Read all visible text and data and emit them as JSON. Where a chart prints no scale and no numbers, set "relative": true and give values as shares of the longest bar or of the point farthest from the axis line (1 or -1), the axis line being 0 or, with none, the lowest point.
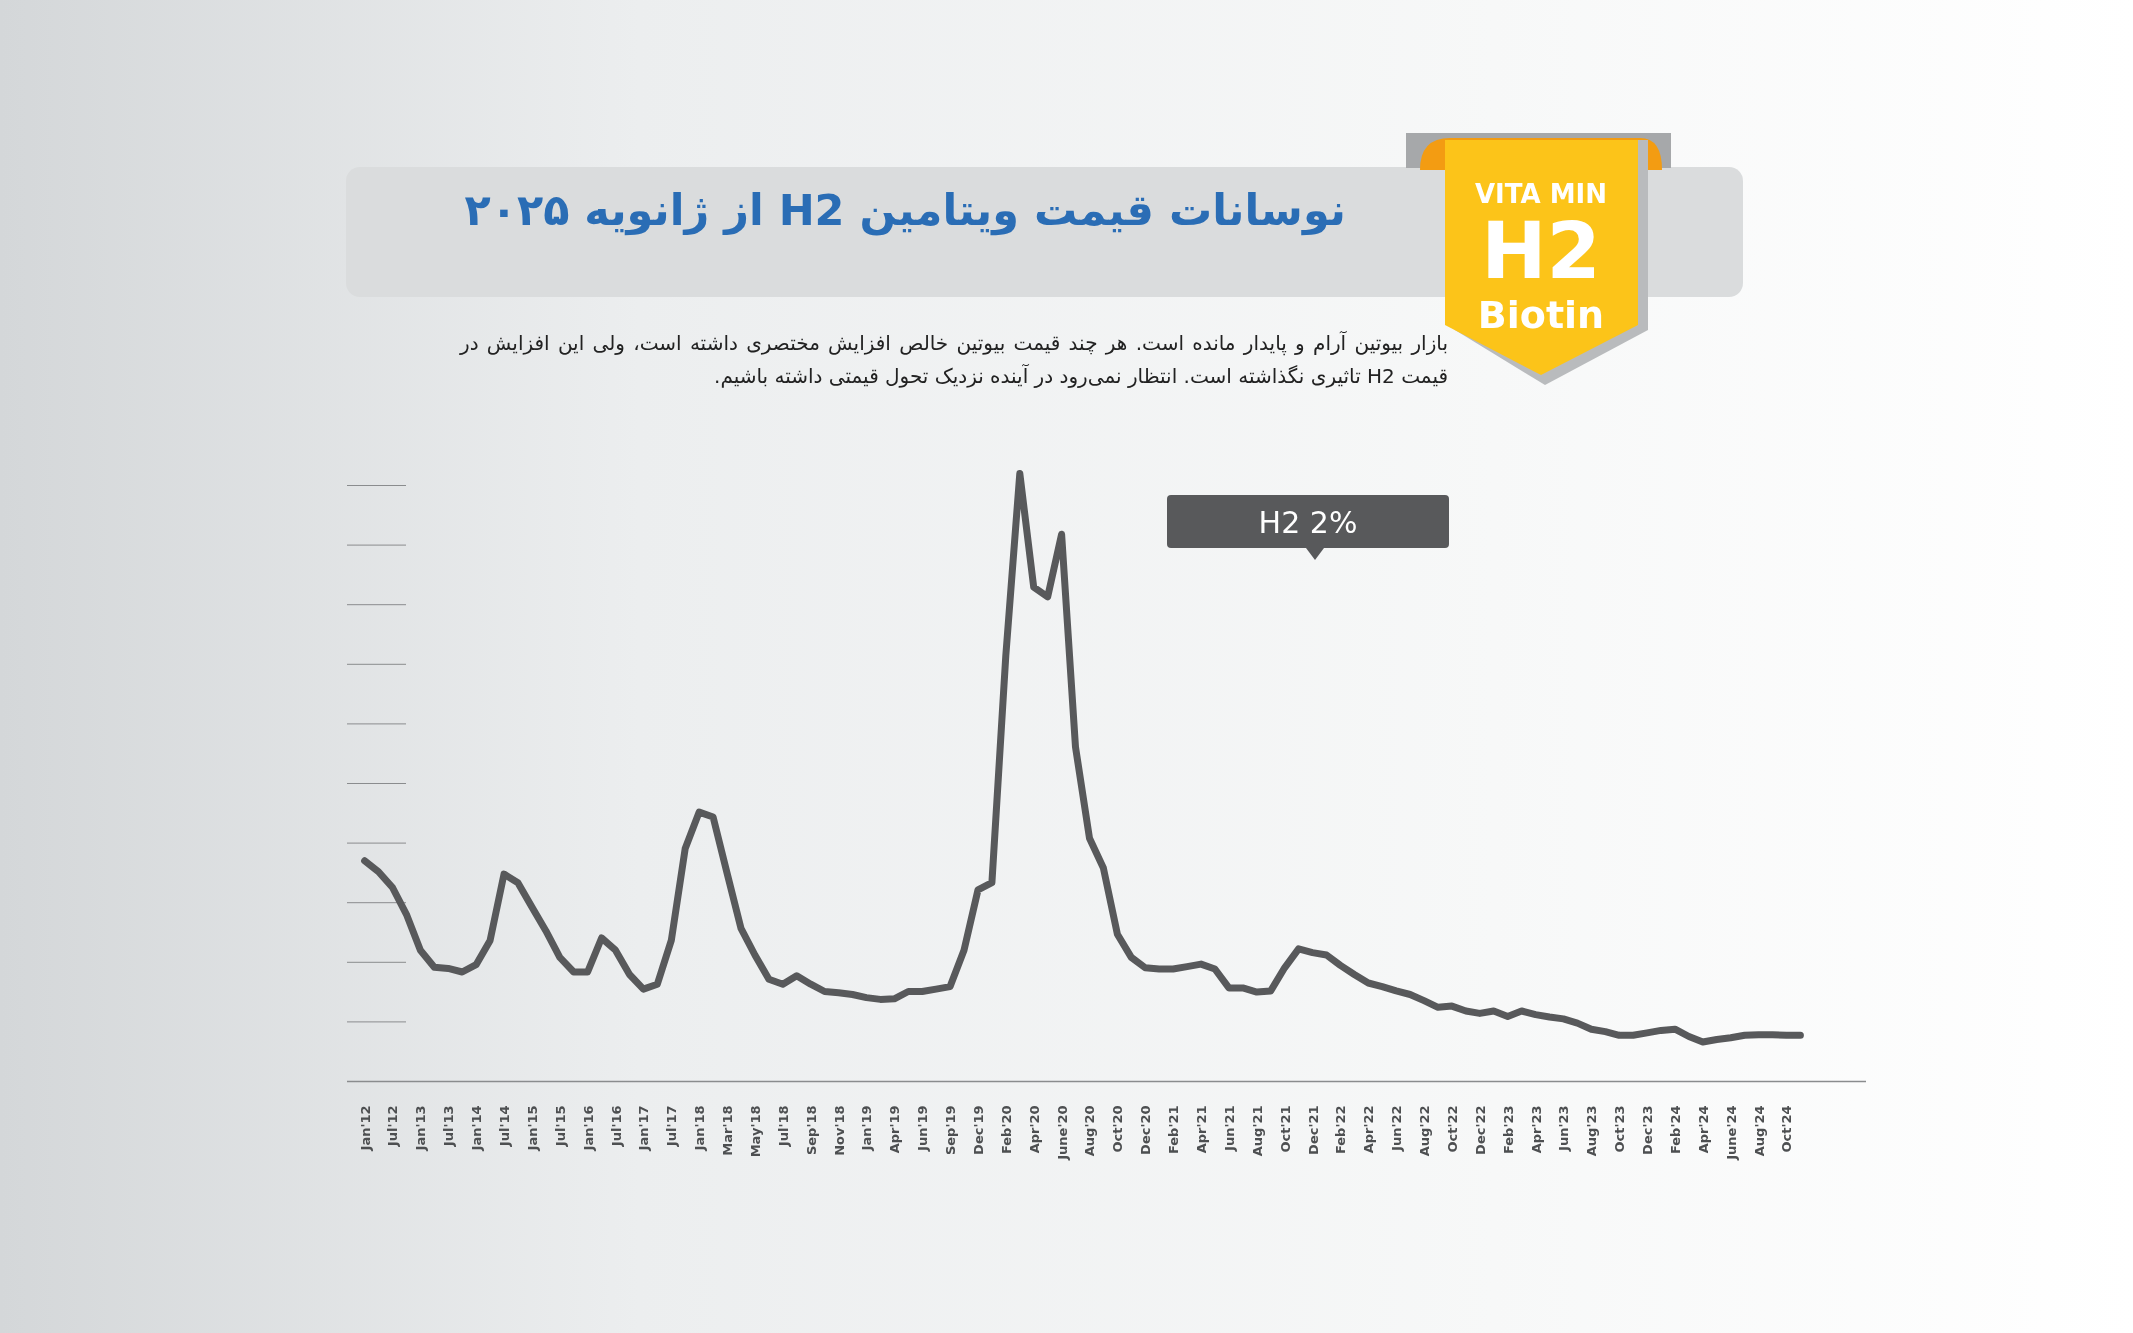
{
  "chart_data": {
    "type": "line",
    "title": "نوسانات قیمت ویتامین H2 از ژانویه ۲۰۲۵",
    "subtitle": "بازار بیوتین آرام و پایدار مانده است. هر چند قیمت بیوتین خالص افزایش مختصری داشته است، ولی این افزایش در قیمت H2 تاثیری نگذاشته است. انتظار نمی‌رود در آینده نزدیک تحول قیمتی داشته باشیم.",
    "annotations": [
      "H2 2%",
      "VITA MIN",
      "H2",
      "Biotin"
    ],
    "relative": true,
    "categories": [
      "Jan'12",
      null,
      "Jul'12",
      null,
      "Jan'13",
      null,
      "Jul'13",
      null,
      "Jan'14",
      null,
      "Jul'14",
      null,
      "Jan'15",
      null,
      "Jul'15",
      null,
      "Jan'16",
      null,
      "Jul'16",
      null,
      "Jan'17",
      null,
      "Jul'17",
      null,
      "Jan'18",
      null,
      "Mar'18",
      null,
      "May'18",
      null,
      "Jul'18",
      null,
      "Sep'18",
      null,
      "Nov'18",
      null,
      "Jan'19",
      null,
      "Apr'19",
      null,
      "Jun'19",
      null,
      "Sep'19",
      null,
      "Dec'19",
      null,
      "Feb'20",
      null,
      "Apr'20",
      null,
      "June'20",
      null,
      "Aug'20",
      null,
      "Oct'20",
      null,
      "Dec'20",
      null,
      "Feb'21",
      null,
      "Apr'21",
      null,
      "Jun'21",
      null,
      "Aug'21",
      null,
      "Oct'21",
      null,
      "Dec'21",
      null,
      "Feb'22",
      null,
      "Apr'22",
      null,
      "Jun'22",
      null,
      "Aug'22",
      null,
      "Oct'22",
      null,
      "Dec'22",
      null,
      "Feb'23",
      null,
      "Apr'23",
      null,
      "Jun'23",
      null,
      "Aug'23",
      null,
      "Oct'23",
      null,
      "Dec'23",
      null,
      "Feb'24",
      null,
      "Apr'24",
      null,
      "June'24",
      null,
      "Aug'24",
      null,
      "Oct'24",
      null
    ],
    "series": [
      {
        "color": "#58595b",
        "values": [
          0.363,
          0.345,
          0.319,
          0.275,
          0.216,
          0.188,
          0.186,
          0.18,
          0.192,
          0.232,
          0.341,
          0.327,
          0.287,
          0.248,
          0.204,
          0.18,
          0.18,
          0.236,
          0.216,
          0.176,
          0.152,
          0.16,
          0.232,
          0.383,
          0.443,
          0.435,
          0.343,
          0.252,
          0.208,
          0.168,
          0.16,
          0.174,
          0.16,
          0.148,
          0.146,
          0.143,
          0.138,
          0.135,
          0.136,
          0.148,
          0.148,
          0.152,
          0.156,
          0.216,
          0.315,
          0.327,
          0.7,
          1.0,
          0.813,
          0.797,
          0.9,
          0.55,
          0.4,
          0.351,
          0.242,
          0.204,
          0.187,
          0.185,
          0.185,
          0.189,
          0.193,
          0.185,
          0.154,
          0.154,
          0.147,
          0.149,
          0.187,
          0.218,
          0.212,
          0.208,
          0.191,
          0.176,
          0.162,
          0.156,
          0.149,
          0.143,
          0.133,
          0.122,
          0.124,
          0.116,
          0.112,
          0.116,
          0.107,
          0.116,
          0.11,
          0.106,
          0.103,
          0.096,
          0.086,
          0.082,
          0.076,
          0.076,
          0.08,
          0.084,
          0.086,
          0.074,
          0.065,
          0.069,
          0.072,
          0.076,
          0.077,
          0.077,
          0.076,
          0.076
        ]
      }
    ]
  }
}
